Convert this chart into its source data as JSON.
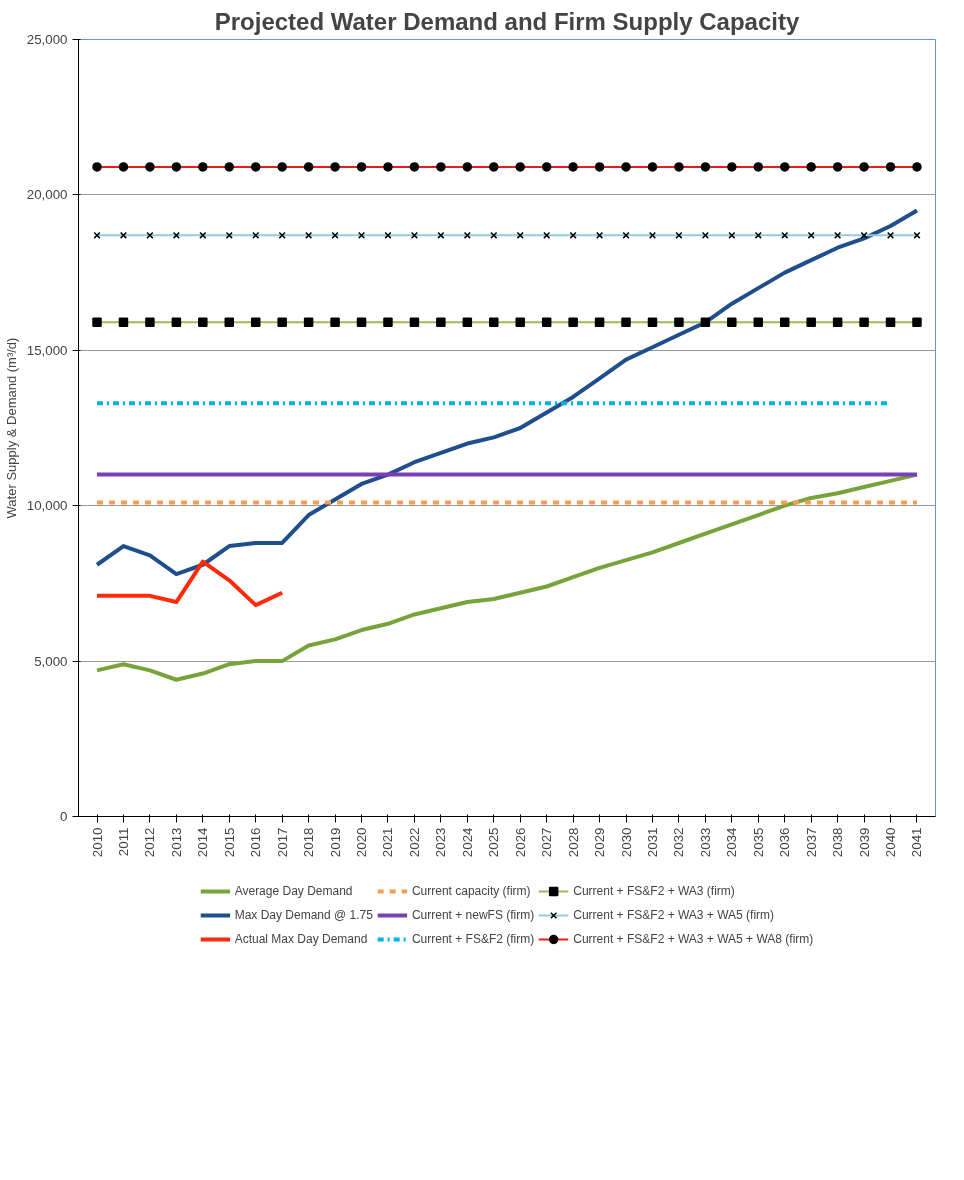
{
  "chart_data": {
    "type": "line",
    "title": "Projected Water Demand and Firm Supply Capacity",
    "ylabel": "Water Supply & Demand (m³/d)",
    "categories": [
      "2010",
      "2011",
      "2012",
      "2013",
      "2014",
      "2015",
      "2016",
      "2017",
      "2018",
      "2019",
      "2020",
      "2021",
      "2022",
      "2023",
      "2024",
      "2025",
      "2026",
      "2027",
      "2028",
      "2029",
      "2030",
      "2031",
      "2032",
      "2033",
      "2034",
      "2035",
      "2036",
      "2037",
      "2038",
      "2039",
      "2040",
      "2041"
    ],
    "ylim": [
      0,
      25000
    ],
    "yticks": [
      {
        "value": 0,
        "label": "0"
      },
      {
        "value": 5000,
        "label": "5,000"
      },
      {
        "value": 10000,
        "label": "10,000"
      },
      {
        "value": 15000,
        "label": "15,000"
      },
      {
        "value": 20000,
        "label": "20,000"
      },
      {
        "value": 25000,
        "label": "25,000"
      }
    ],
    "grid": "y",
    "legend": "bottom",
    "series": [
      {
        "name": "Average Day Demand",
        "color": "#77a33a",
        "line_style": "solid",
        "values": [
          4700,
          4900,
          4700,
          4400,
          4600,
          4900,
          5000,
          5000,
          5500,
          5700,
          6000,
          6200,
          6500,
          6700,
          6900,
          7000,
          7200,
          7400,
          7700,
          8000,
          8250,
          8500,
          8800,
          9100,
          9400,
          9700,
          10000,
          10250,
          10400,
          10600,
          10800,
          11000
        ]
      },
      {
        "name": "Max Day Demand @ 1.75",
        "color": "#1f4e8c",
        "line_style": "solid",
        "values": [
          8100,
          8700,
          8400,
          7800,
          8100,
          8700,
          8800,
          8800,
          9700,
          10200,
          10700,
          11000,
          11400,
          11700,
          12000,
          12200,
          12500,
          13000,
          13500,
          14100,
          14700,
          15100,
          15500,
          15900,
          16500,
          17000,
          17500,
          17900,
          18300,
          18600,
          19000,
          19500
        ]
      },
      {
        "name": "Actual Max Day Demand",
        "color": "#ff2a0a",
        "line_style": "solid",
        "values": [
          7100,
          7100,
          7100,
          6900,
          8200,
          7600,
          6800,
          7200,
          null,
          null,
          null,
          null,
          null,
          null,
          null,
          null,
          null,
          null,
          null,
          null,
          null,
          null,
          null,
          null,
          null,
          null,
          null,
          null,
          null,
          null,
          null,
          null
        ]
      },
      {
        "name": "Current capacity (firm)",
        "color": "#f5a050",
        "line_style": "dashed",
        "values": [
          10100,
          10100,
          10100,
          10100,
          10100,
          10100,
          10100,
          10100,
          10100,
          10100,
          10100,
          10100,
          10100,
          10100,
          10100,
          10100,
          10100,
          10100,
          10100,
          10100,
          10100,
          10100,
          10100,
          10100,
          10100,
          10100,
          10100,
          10100,
          10100,
          10100,
          10100,
          10100
        ]
      },
      {
        "name": "Current + newFS (firm)",
        "color": "#7b3fb5",
        "line_style": "solid",
        "values": [
          11000,
          11000,
          11000,
          11000,
          11000,
          11000,
          11000,
          11000,
          11000,
          11000,
          11000,
          11000,
          11000,
          11000,
          11000,
          11000,
          11000,
          11000,
          11000,
          11000,
          11000,
          11000,
          11000,
          11000,
          11000,
          11000,
          11000,
          11000,
          11000,
          11000,
          11000,
          11000
        ]
      },
      {
        "name": "Current + FS&F2 (firm)",
        "color": "#00b0f0",
        "line_style": "dashdot",
        "values": [
          13300,
          13300,
          13300,
          13300,
          13300,
          13300,
          13300,
          13300,
          13300,
          13300,
          13300,
          13300,
          13300,
          13300,
          13300,
          13300,
          13300,
          13300,
          13300,
          13300,
          13300,
          13300,
          13300,
          13300,
          13300,
          13300,
          13300,
          13300,
          13300,
          13300,
          13300,
          null
        ]
      },
      {
        "name": "Current + FS&F2 + WA3 (firm)",
        "color": "#9bbb59",
        "line_style": "solid",
        "marker": "square",
        "values": [
          15900,
          15900,
          15900,
          15900,
          15900,
          15900,
          15900,
          15900,
          15900,
          15900,
          15900,
          15900,
          15900,
          15900,
          15900,
          15900,
          15900,
          15900,
          15900,
          15900,
          15900,
          15900,
          15900,
          15900,
          15900,
          15900,
          15900,
          15900,
          15900,
          15900,
          15900,
          15900
        ]
      },
      {
        "name": "Current + FS&F2 + WA3 + WA5 (firm)",
        "color": "#93cddd",
        "line_style": "solid",
        "marker": "cross",
        "values": [
          18700,
          18700,
          18700,
          18700,
          18700,
          18700,
          18700,
          18700,
          18700,
          18700,
          18700,
          18700,
          18700,
          18700,
          18700,
          18700,
          18700,
          18700,
          18700,
          18700,
          18700,
          18700,
          18700,
          18700,
          18700,
          18700,
          18700,
          18700,
          18700,
          18700,
          18700,
          18700
        ]
      },
      {
        "name": "Current + FS&F2 + WA3 + WA5 + WA8 (firm)",
        "color": "#e0201b",
        "line_style": "solid",
        "marker": "circle",
        "values": [
          20900,
          20900,
          20900,
          20900,
          20900,
          20900,
          20900,
          20900,
          20900,
          20900,
          20900,
          20900,
          20900,
          20900,
          20900,
          20900,
          20900,
          20900,
          20900,
          20900,
          20900,
          20900,
          20900,
          20900,
          20900,
          20900,
          20900,
          20900,
          20900,
          20900,
          20900,
          20900
        ]
      }
    ]
  }
}
